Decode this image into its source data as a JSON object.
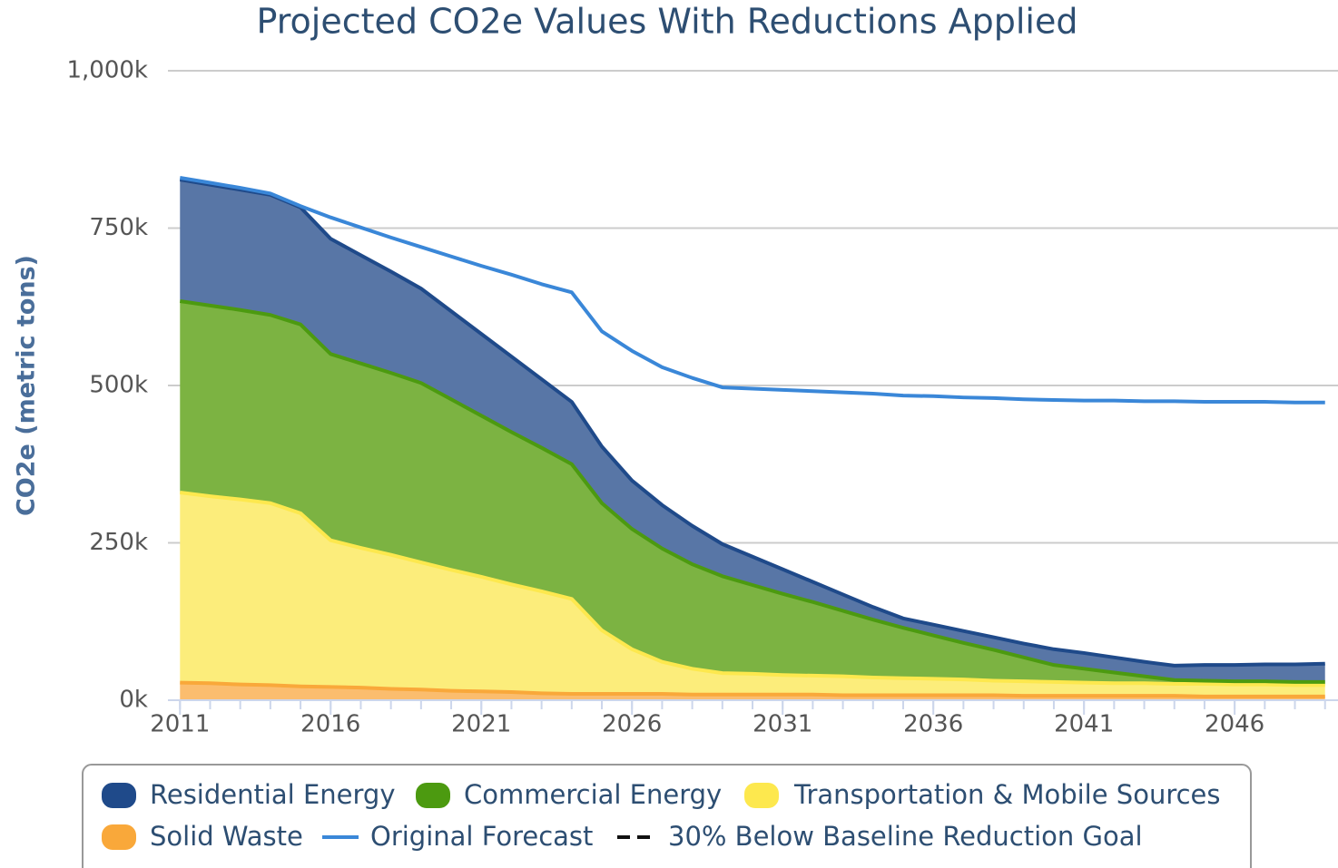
{
  "chart_data": {
    "type": "area",
    "stacked": true,
    "title": "Projected CO2e Values With Reductions Applied",
    "y_label": "CO2e (metric tons)",
    "x": [
      2011,
      2012,
      2013,
      2014,
      2015,
      2016,
      2017,
      2018,
      2019,
      2020,
      2021,
      2022,
      2023,
      2024,
      2025,
      2026,
      2027,
      2028,
      2029,
      2030,
      2031,
      2032,
      2033,
      2034,
      2035,
      2036,
      2037,
      2038,
      2039,
      2040,
      2041,
      2042,
      2043,
      2044,
      2045,
      2046,
      2047,
      2048,
      2049
    ],
    "xlim": [
      2010.6,
      2049.43
    ],
    "xticks": [
      2011,
      2016,
      2021,
      2026,
      2031,
      2036,
      2041,
      2046
    ],
    "ylim": [
      0,
      1000000
    ],
    "yticks": [
      {
        "value": 0,
        "label": "0k"
      },
      {
        "value": 250000,
        "label": "250k"
      },
      {
        "value": 500000,
        "label": "500k"
      },
      {
        "value": 750000,
        "label": "750k"
      },
      {
        "value": 1000000,
        "label": "1,000k"
      }
    ],
    "grid": true,
    "legend": "bottom",
    "series": [
      {
        "name": "Residential Energy",
        "kind": "area",
        "color": "#1f4a8a",
        "fill": "#5876a6",
        "values": [
          193000,
          192000,
          191000,
          191000,
          186000,
          183000,
          172000,
          161000,
          150000,
          140000,
          130000,
          120000,
          109000,
          99000,
          90000,
          77000,
          69000,
          61000,
          51000,
          45000,
          39000,
          32000,
          26000,
          20000,
          15000,
          17000,
          19000,
          20000,
          22000,
          25000,
          25000,
          24000,
          23000,
          23000,
          25000,
          26000,
          27000,
          28000,
          29000
        ]
      },
      {
        "name": "Commercial Energy",
        "kind": "area",
        "color": "#4c9a10",
        "fill": "#7cb342",
        "values": [
          304000,
          303000,
          301000,
          299000,
          300000,
          296000,
          293000,
          289000,
          285000,
          271000,
          256000,
          242000,
          228000,
          214000,
          202000,
          191000,
          180000,
          166000,
          154000,
          141000,
          129000,
          117000,
          104000,
          92000,
          80000,
          69000,
          58000,
          49000,
          38000,
          27000,
          22000,
          17000,
          11000,
          6000,
          5000,
          5000,
          5000,
          5000,
          5000
        ]
      },
      {
        "name": "Transportation & Mobile Sources",
        "kind": "area",
        "color": "#fde84e",
        "fill": "#fced7b",
        "values": [
          302000,
          297000,
          294000,
          289000,
          275000,
          233000,
          222000,
          213000,
          202000,
          192000,
          182000,
          171000,
          162000,
          151000,
          101000,
          71000,
          51000,
          41000,
          34000,
          33000,
          31000,
          30000,
          30000,
          28000,
          27000,
          26000,
          25000,
          23000,
          23000,
          22000,
          21000,
          20000,
          20000,
          19000,
          20000,
          19000,
          19000,
          18000,
          18000
        ]
      },
      {
        "name": "Solid Waste",
        "kind": "area",
        "color": "#f9a83a",
        "fill": "#fbbd6e",
        "values": [
          28000,
          27000,
          25000,
          24000,
          22000,
          21000,
          20000,
          18000,
          17000,
          15000,
          14000,
          13000,
          11000,
          10000,
          10000,
          10000,
          10000,
          9000,
          9000,
          9000,
          9000,
          9000,
          8000,
          8000,
          8000,
          8000,
          8000,
          8000,
          7000,
          7000,
          7000,
          7000,
          7000,
          7000,
          6000,
          6000,
          6000,
          6000,
          6000
        ]
      },
      {
        "name": "Original Forecast",
        "kind": "line",
        "color": "#3a87d8",
        "values": [
          830000,
          822000,
          814000,
          805000,
          785000,
          767000,
          751000,
          735000,
          720000,
          705000,
          690000,
          676000,
          661000,
          648000,
          586000,
          555000,
          529000,
          512000,
          497000,
          495000,
          493000,
          491000,
          489000,
          487000,
          484000,
          483000,
          481000,
          480000,
          478000,
          477000,
          476000,
          476000,
          475000,
          475000,
          474000,
          474000,
          474000,
          473000,
          473000
        ]
      },
      {
        "name": "30% Below Baseline Reduction Goal",
        "kind": "line",
        "dashed": true,
        "color": "#111111",
        "values": [
          null,
          null,
          null,
          null,
          null,
          null,
          null,
          null,
          null,
          null,
          null,
          null,
          null,
          null,
          null,
          null,
          null,
          null,
          null,
          null,
          null,
          null,
          null,
          null,
          null,
          null,
          null,
          null,
          null,
          null,
          null,
          null,
          null,
          null,
          null,
          null,
          null,
          null,
          null
        ]
      }
    ]
  }
}
